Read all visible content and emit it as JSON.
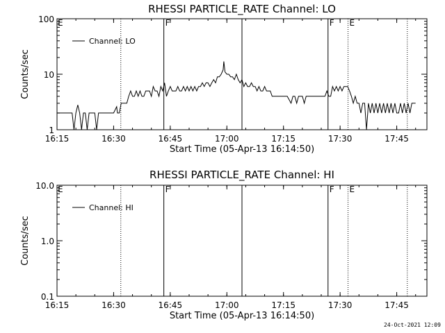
{
  "chart_data": [
    {
      "type": "line",
      "title": "RHESSI PARTICLE_RATE Channel: LO",
      "xlabel": "Start Time (05-Apr-13 16:14:50)",
      "ylabel": "Counts/sec",
      "y_scale": "log",
      "ylim": [
        1,
        100
      ],
      "ytick_labels": [
        "1",
        "10",
        "100"
      ],
      "xlim": [
        "16:15",
        "17:53"
      ],
      "xtick_labels": [
        "16:15",
        "16:30",
        "16:45",
        "17:00",
        "17:15",
        "17:30",
        "17:45"
      ],
      "legend": {
        "label": "Channel: LO",
        "position": "top-left"
      },
      "event_markers": [
        {
          "time": "16:31.9",
          "label": "",
          "style": "dotted"
        },
        {
          "time": "16:43.3",
          "label": "F",
          "style": "solid"
        },
        {
          "time": "17:04.0",
          "label": "",
          "style": "solid"
        },
        {
          "time": "17:26.8",
          "label": "F",
          "style": "solid"
        },
        {
          "time": "17:32.1",
          "label": "E",
          "style": "dotted"
        },
        {
          "time": "17:47.8",
          "label": "",
          "style": "dotted"
        }
      ],
      "edge_label": "E",
      "series": [
        {
          "name": "Channel: LO",
          "points": [
            [
              0.0,
              2
            ],
            [
              1.0,
              2
            ],
            [
              2.0,
              2
            ],
            [
              3.0,
              2
            ],
            [
              4.0,
              2
            ],
            [
              4.5,
              1
            ],
            [
              5.0,
              2
            ],
            [
              5.5,
              2.8
            ],
            [
              6.0,
              2
            ],
            [
              6.5,
              1
            ],
            [
              7.0,
              2
            ],
            [
              7.5,
              2
            ],
            [
              8.0,
              1
            ],
            [
              8.5,
              2
            ],
            [
              9.0,
              2
            ],
            [
              9.5,
              2
            ],
            [
              10.0,
              2
            ],
            [
              10.5,
              1
            ],
            [
              11.0,
              2
            ],
            [
              11.5,
              2
            ],
            [
              12.0,
              2
            ],
            [
              13.0,
              2
            ],
            [
              14.0,
              2
            ],
            [
              15.0,
              2
            ],
            [
              15.8,
              2.6
            ],
            [
              16.0,
              2
            ],
            [
              16.5,
              2
            ],
            [
              17.0,
              3
            ],
            [
              17.5,
              3
            ],
            [
              18.0,
              3
            ],
            [
              18.5,
              3
            ],
            [
              19.0,
              4
            ],
            [
              19.5,
              5
            ],
            [
              20.0,
              4
            ],
            [
              20.5,
              4
            ],
            [
              21.0,
              5
            ],
            [
              21.5,
              4
            ],
            [
              22.0,
              5
            ],
            [
              22.5,
              4
            ],
            [
              23.0,
              4
            ],
            [
              23.5,
              5
            ],
            [
              24.0,
              5
            ],
            [
              24.5,
              5
            ],
            [
              25.0,
              4
            ],
            [
              25.5,
              6
            ],
            [
              26.0,
              5
            ],
            [
              26.5,
              5
            ],
            [
              27.0,
              4
            ],
            [
              27.5,
              6
            ],
            [
              28.0,
              5
            ],
            [
              28.5,
              7
            ],
            [
              29.0,
              4
            ],
            [
              29.5,
              5
            ],
            [
              30.0,
              6
            ],
            [
              30.5,
              5
            ],
            [
              31.0,
              5
            ],
            [
              31.5,
              5
            ],
            [
              32.0,
              6
            ],
            [
              32.5,
              5
            ],
            [
              33.0,
              5
            ],
            [
              33.5,
              6
            ],
            [
              34.0,
              5
            ],
            [
              34.5,
              6
            ],
            [
              35.0,
              5
            ],
            [
              35.5,
              6
            ],
            [
              36.0,
              5
            ],
            [
              36.5,
              6
            ],
            [
              37.0,
              5
            ],
            [
              37.5,
              6
            ],
            [
              38.0,
              6
            ],
            [
              38.5,
              7
            ],
            [
              39.0,
              6
            ],
            [
              39.5,
              7
            ],
            [
              40.0,
              7
            ],
            [
              40.5,
              6
            ],
            [
              41.0,
              7
            ],
            [
              41.5,
              8
            ],
            [
              42.0,
              7
            ],
            [
              42.5,
              9
            ],
            [
              43.0,
              9
            ],
            [
              43.5,
              10
            ],
            [
              44.0,
              12
            ],
            [
              44.2,
              17
            ],
            [
              44.5,
              11
            ],
            [
              45.0,
              10
            ],
            [
              45.5,
              10
            ],
            [
              46.0,
              9
            ],
            [
              46.5,
              9
            ],
            [
              47.0,
              8
            ],
            [
              47.5,
              10
            ],
            [
              48.0,
              8
            ],
            [
              48.5,
              7
            ],
            [
              49.0,
              8
            ],
            [
              49.5,
              6
            ],
            [
              50.0,
              7
            ],
            [
              50.5,
              6
            ],
            [
              51.0,
              6
            ],
            [
              51.5,
              7
            ],
            [
              52.0,
              6
            ],
            [
              52.5,
              6
            ],
            [
              53.0,
              5
            ],
            [
              53.5,
              6
            ],
            [
              54.0,
              5
            ],
            [
              54.5,
              5
            ],
            [
              55.0,
              6
            ],
            [
              55.5,
              5
            ],
            [
              56.0,
              5
            ],
            [
              56.5,
              5
            ],
            [
              57.0,
              4
            ],
            [
              57.5,
              4
            ],
            [
              58.0,
              4
            ],
            [
              59.0,
              4
            ],
            [
              60.0,
              4
            ],
            [
              61.0,
              4
            ],
            [
              62.0,
              3
            ],
            [
              62.5,
              4
            ],
            [
              63.0,
              4
            ],
            [
              63.5,
              3
            ],
            [
              64.0,
              4
            ],
            [
              64.5,
              4
            ],
            [
              65.0,
              4
            ],
            [
              65.5,
              3
            ],
            [
              66.0,
              4
            ],
            [
              66.5,
              4
            ],
            [
              67.0,
              4
            ],
            [
              68.0,
              4
            ],
            [
              69.0,
              4
            ],
            [
              70.0,
              4
            ],
            [
              71.0,
              4
            ],
            [
              71.5,
              5
            ],
            [
              72.0,
              4
            ],
            [
              72.5,
              4
            ],
            [
              73.0,
              6
            ],
            [
              73.5,
              5
            ],
            [
              74.0,
              6
            ],
            [
              74.5,
              5
            ],
            [
              75.0,
              6
            ],
            [
              75.5,
              5
            ],
            [
              76.0,
              6
            ],
            [
              76.5,
              6
            ],
            [
              77.0,
              6
            ],
            [
              77.5,
              5
            ],
            [
              78.0,
              4
            ],
            [
              78.5,
              3
            ],
            [
              79.0,
              4
            ],
            [
              79.5,
              3
            ],
            [
              80.0,
              3
            ],
            [
              80.5,
              2
            ],
            [
              81.0,
              3
            ],
            [
              81.5,
              3
            ],
            [
              82.0,
              1
            ],
            [
              82.5,
              3
            ],
            [
              83.0,
              2
            ],
            [
              83.5,
              3
            ],
            [
              84.0,
              2
            ],
            [
              84.5,
              3
            ],
            [
              85.0,
              2
            ],
            [
              85.5,
              3
            ],
            [
              86.0,
              2
            ],
            [
              86.5,
              3
            ],
            [
              87.0,
              2
            ],
            [
              87.5,
              3
            ],
            [
              88.0,
              2
            ],
            [
              88.5,
              3
            ],
            [
              89.0,
              2
            ],
            [
              89.5,
              3
            ],
            [
              90.0,
              2
            ],
            [
              90.5,
              2
            ],
            [
              91.0,
              3
            ],
            [
              91.5,
              2
            ],
            [
              92.0,
              3
            ],
            [
              92.5,
              2
            ],
            [
              93.0,
              3
            ],
            [
              93.5,
              2
            ],
            [
              94.0,
              3
            ],
            [
              94.5,
              3
            ],
            [
              95.0,
              3
            ]
          ]
        }
      ]
    },
    {
      "type": "line",
      "title": "RHESSI PARTICLE_RATE Channel: HI",
      "xlabel": "Start Time (05-Apr-13 16:14:50)",
      "ylabel": "Counts/sec",
      "y_scale": "log",
      "ylim": [
        0.1,
        10
      ],
      "ytick_labels": [
        "0.1",
        "1.0",
        "10.0"
      ],
      "xlim": [
        "16:15",
        "17:53"
      ],
      "xtick_labels": [
        "16:15",
        "16:30",
        "16:45",
        "17:00",
        "17:15",
        "17:30",
        "17:45"
      ],
      "legend": {
        "label": "Channel: HI",
        "position": "top-left"
      },
      "event_markers": [
        {
          "time": "16:31.9",
          "label": "",
          "style": "dotted"
        },
        {
          "time": "16:43.3",
          "label": "F",
          "style": "solid"
        },
        {
          "time": "17:04.0",
          "label": "",
          "style": "solid"
        },
        {
          "time": "17:26.8",
          "label": "F",
          "style": "solid"
        },
        {
          "time": "17:32.1",
          "label": "E",
          "style": "dotted"
        },
        {
          "time": "17:47.8",
          "label": "",
          "style": "dotted"
        }
      ],
      "edge_label": "E",
      "series": [
        {
          "name": "Channel: HI",
          "points": []
        }
      ]
    }
  ],
  "footer": {
    "date_stamp": "24-Oct-2021 12:09"
  }
}
